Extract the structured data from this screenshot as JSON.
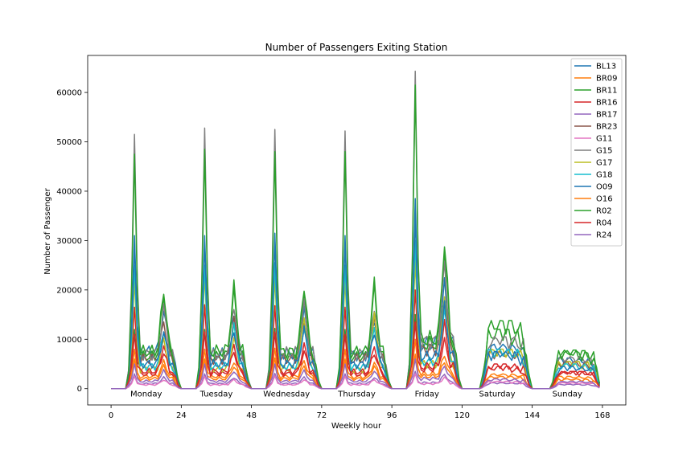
{
  "chart_data": {
    "type": "line",
    "title": "Number of Passengers Exiting Station",
    "xlabel": "Weekly hour",
    "ylabel": "Number of Passenger",
    "xlim": [
      -8,
      176
    ],
    "ylim": [
      -3300,
      67500
    ],
    "xticks": [
      0,
      24,
      48,
      72,
      96,
      120,
      144,
      168
    ],
    "yticks": [
      0,
      10000,
      20000,
      30000,
      40000,
      50000,
      60000
    ],
    "legend_position": "top-right",
    "grid": false,
    "day_labels": [
      {
        "text": "Monday",
        "x": 12
      },
      {
        "text": "Tuesday",
        "x": 36
      },
      {
        "text": "Wednesday",
        "x": 60
      },
      {
        "text": "Thursday",
        "x": 84
      },
      {
        "text": "Friday",
        "x": 108
      },
      {
        "text": "Saturday",
        "x": 132
      },
      {
        "text": "Sunday",
        "x": 156
      }
    ],
    "day_label_y": -1000,
    "series": [
      {
        "name": "BL13",
        "color": "#1f77b4",
        "am": [
          31000,
          31000,
          31500,
          31000,
          38500
        ],
        "pm": [
          9500,
          9800,
          9900,
          9000,
          14000
        ],
        "base": [
          7500,
          7000,
          7200,
          6800,
          9000
        ],
        "sat": 9000,
        "sun": 6200
      },
      {
        "name": "BR09",
        "color": "#ff7f0e",
        "am": [
          8000,
          8000,
          8200,
          8000,
          10000
        ],
        "pm": [
          3500,
          3500,
          3600,
          3400,
          4500
        ],
        "base": [
          2500,
          2500,
          2500,
          2400,
          3000
        ],
        "sat": 2500,
        "sun": 2000
      },
      {
        "name": "BR11",
        "color": "#2ca02c",
        "am": [
          12000,
          12000,
          12200,
          12000,
          15000
        ],
        "pm": [
          15000,
          15500,
          16000,
          16500,
          23000
        ],
        "base": [
          6500,
          6500,
          6500,
          6400,
          9000
        ],
        "sat": 12000,
        "sun": 7800
      },
      {
        "name": "BR16",
        "color": "#d62728",
        "am": [
          16500,
          17000,
          16800,
          16500,
          20000
        ],
        "pm": [
          7000,
          7000,
          7200,
          7000,
          11000
        ],
        "base": [
          3000,
          3000,
          3000,
          2900,
          4000
        ],
        "sat": 5000,
        "sun": 3500
      },
      {
        "name": "BR17",
        "color": "#9467bd",
        "am": [
          3000,
          3000,
          3100,
          3000,
          3500
        ],
        "pm": [
          1500,
          1500,
          1500,
          1500,
          2000
        ],
        "base": [
          1000,
          1000,
          1000,
          1000,
          1200
        ],
        "sat": 1200,
        "sun": 900
      },
      {
        "name": "BR23",
        "color": "#8c564b",
        "am": [
          24000,
          25000,
          24500,
          25000,
          30000
        ],
        "pm": [
          9000,
          9500,
          9500,
          9000,
          12000
        ],
        "base": [
          6000,
          6000,
          6000,
          6000,
          8000
        ],
        "sat": 7500,
        "sun": 5500
      },
      {
        "name": "G11",
        "color": "#e377c2",
        "am": [
          2500,
          2500,
          2600,
          2500,
          3000
        ],
        "pm": [
          1200,
          1200,
          1200,
          1200,
          1500
        ],
        "base": [
          800,
          800,
          800,
          800,
          1000
        ],
        "sat": 1500,
        "sun": 1200
      },
      {
        "name": "G15",
        "color": "#7f7f7f",
        "am": [
          51500,
          52800,
          52500,
          52200,
          64300
        ],
        "pm": [
          11000,
          12000,
          11500,
          11500,
          18000
        ],
        "base": [
          7000,
          7000,
          7200,
          7000,
          9500
        ],
        "sat": 10500,
        "sun": 6500
      },
      {
        "name": "G17",
        "color": "#bcbd22",
        "am": [
          22000,
          23000,
          22500,
          22000,
          26000
        ],
        "pm": [
          7000,
          7500,
          12500,
          13000,
          17000
        ],
        "base": [
          4000,
          4000,
          4000,
          3900,
          5000
        ],
        "sat": 8000,
        "sun": 5500
      },
      {
        "name": "G18",
        "color": "#17becf",
        "am": [
          25000,
          25000,
          25500,
          25000,
          30000
        ],
        "pm": [
          9000,
          9500,
          9500,
          9000,
          12500
        ],
        "base": [
          4500,
          4500,
          4500,
          4400,
          5500
        ],
        "sat": 8000,
        "sun": 5000
      },
      {
        "name": "O09",
        "color": "#1f77b4",
        "am": [
          29000,
          29500,
          30000,
          29500,
          35000
        ],
        "pm": [
          7500,
          8000,
          8200,
          8000,
          12000
        ],
        "base": [
          5000,
          5000,
          5000,
          4900,
          6500
        ],
        "sat": 7500,
        "sun": 4500
      },
      {
        "name": "O16",
        "color": "#ff7f0e",
        "am": [
          6000,
          6000,
          6200,
          6000,
          7000
        ],
        "pm": [
          3000,
          3000,
          3000,
          3000,
          3500
        ],
        "base": [
          2000,
          2000,
          2000,
          2000,
          2500
        ],
        "sat": 3000,
        "sun": 2500
      },
      {
        "name": "R02",
        "color": "#2ca02c",
        "am": [
          47500,
          48500,
          48000,
          48000,
          61500
        ],
        "pm": [
          14800,
          15500,
          16000,
          16500,
          23300
        ],
        "base": [
          7500,
          7600,
          7500,
          7400,
          10000
        ],
        "sat": 13800,
        "sun": 7700
      },
      {
        "name": "R04",
        "color": "#d62728",
        "am": [
          11000,
          11500,
          11500,
          11000,
          13500
        ],
        "pm": [
          4500,
          4500,
          4600,
          4500,
          6000
        ],
        "base": [
          3500,
          3500,
          3500,
          3400,
          4500
        ],
        "sat": 4500,
        "sun": 3500
      },
      {
        "name": "R24",
        "color": "#9467bd",
        "am": [
          5000,
          5000,
          5000,
          5000,
          6000
        ],
        "pm": [
          2500,
          2500,
          2500,
          2500,
          3000
        ],
        "base": [
          1500,
          1500,
          1500,
          1500,
          2000
        ],
        "sat": 2000,
        "sun": 1500
      }
    ]
  }
}
